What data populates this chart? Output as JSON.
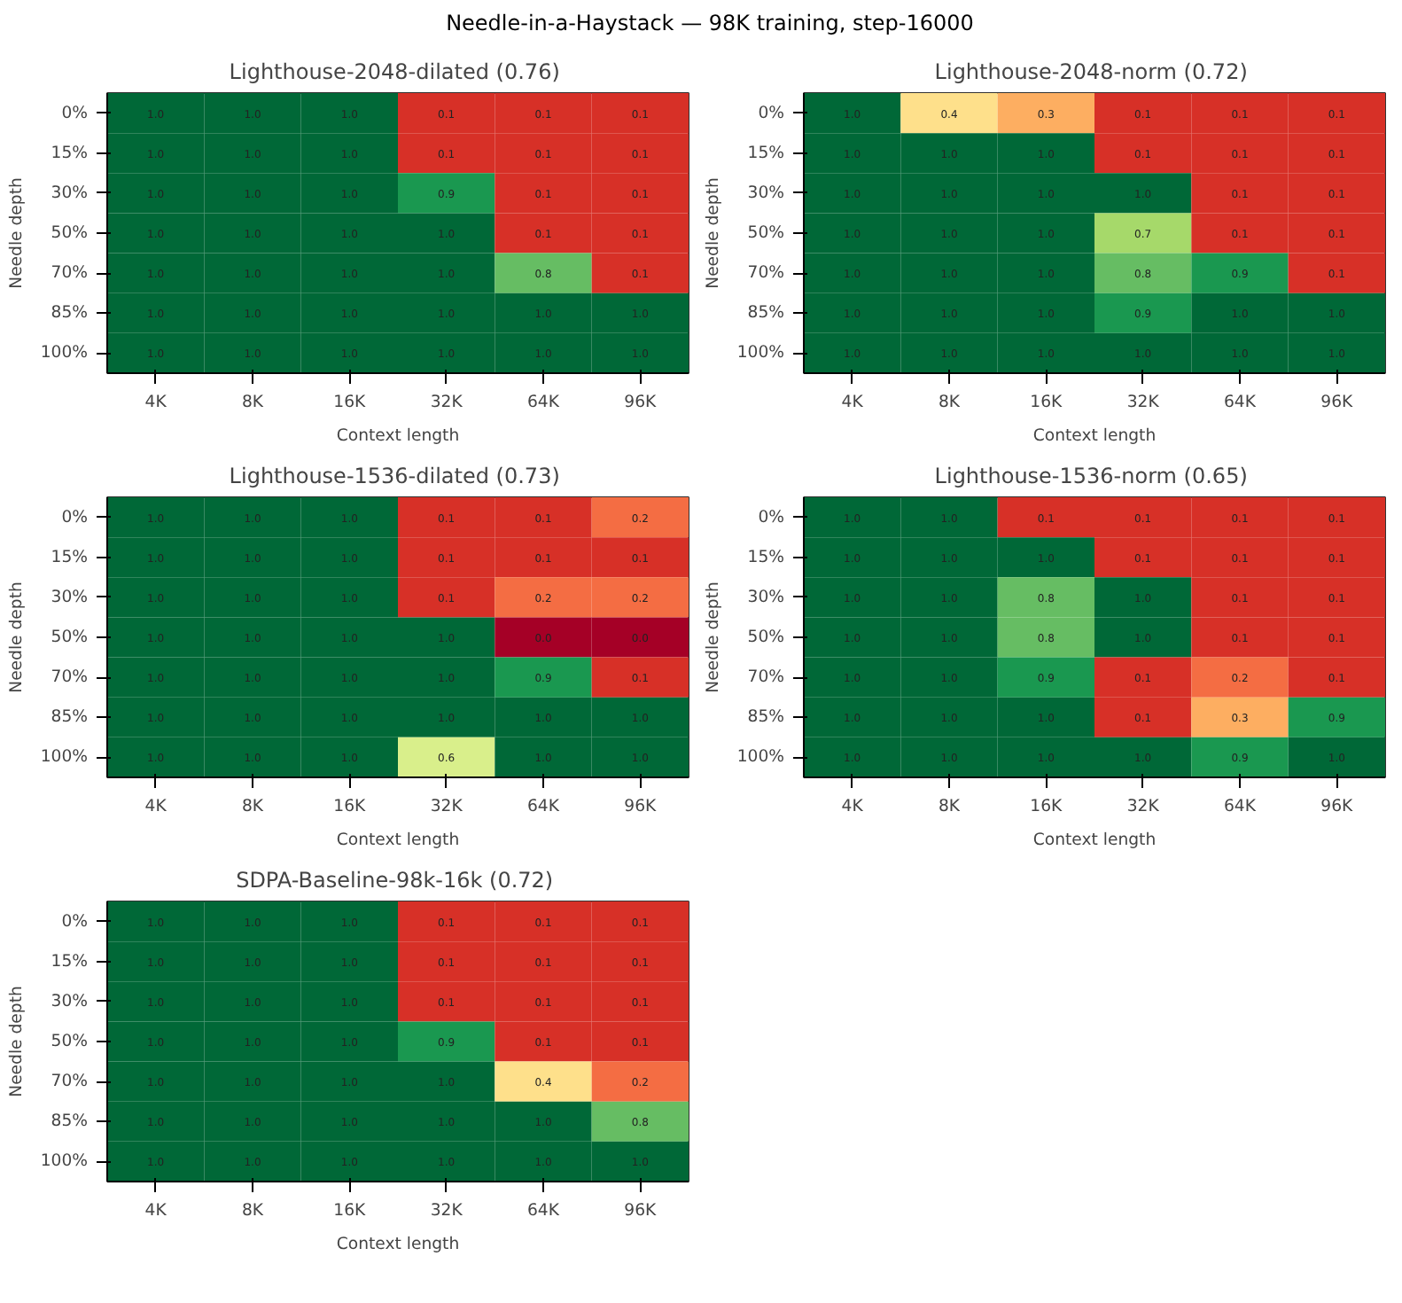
{
  "chart_data": [
    {
      "type": "heatmap",
      "title": "Lighthouse-2048-dilated  (0.76)",
      "annotations": [
        "Needle-in-a-Haystack — 98K training, step-16000"
      ],
      "xlabel": "Context length",
      "ylabel": "Needle depth",
      "data_labels": true,
      "categories": [
        "4K",
        "8K",
        "16K",
        "32K",
        "64K",
        "96K"
      ],
      "y_categories": [
        "0%",
        "15%",
        "30%",
        "50%",
        "70%",
        "85%",
        "100%"
      ],
      "cells": [
        [
          1.0,
          1.0,
          1.0,
          0.1,
          0.1,
          0.1
        ],
        [
          1.0,
          1.0,
          1.0,
          0.1,
          0.1,
          0.1
        ],
        [
          1.0,
          1.0,
          1.0,
          0.9,
          0.1,
          0.1
        ],
        [
          1.0,
          1.0,
          1.0,
          1.0,
          0.1,
          0.1
        ],
        [
          1.0,
          1.0,
          1.0,
          1.0,
          0.8,
          0.1
        ],
        [
          1.0,
          1.0,
          1.0,
          1.0,
          1.0,
          1.0
        ],
        [
          1.0,
          1.0,
          1.0,
          1.0,
          1.0,
          1.0
        ]
      ],
      "cell_labels": [
        [
          "1.0",
          "1.0",
          "1.0",
          "0.1",
          "0.1",
          "0.1"
        ],
        [
          "1.0",
          "1.0",
          "1.0",
          "0.1",
          "0.1",
          "0.1"
        ],
        [
          "1.0",
          "1.0",
          "1.0",
          "0.9",
          "0.1",
          "0.1"
        ],
        [
          "1.0",
          "1.0",
          "1.0",
          "1.0",
          "0.1",
          "0.1"
        ],
        [
          "1.0",
          "1.0",
          "1.0",
          "1.0",
          "0.8",
          "0.1"
        ],
        [
          "1.0",
          "1.0",
          "1.0",
          "1.0",
          "1.0",
          "1.0"
        ],
        [
          "1.0",
          "1.0",
          "1.0",
          "1.0",
          "1.0",
          "1.0"
        ]
      ]
    },
    {
      "type": "heatmap",
      "title": "Lighthouse-2048-norm  (0.72)",
      "xlabel": "Context length",
      "ylabel": "Needle depth",
      "data_labels": true,
      "categories": [
        "4K",
        "8K",
        "16K",
        "32K",
        "64K",
        "96K"
      ],
      "y_categories": [
        "0%",
        "15%",
        "30%",
        "50%",
        "70%",
        "85%",
        "100%"
      ],
      "cells": [
        [
          1.0,
          0.4,
          0.3,
          0.1,
          0.1,
          0.1
        ],
        [
          1.0,
          1.0,
          1.0,
          0.1,
          0.1,
          0.1
        ],
        [
          1.0,
          1.0,
          1.0,
          1.0,
          0.1,
          0.1
        ],
        [
          1.0,
          1.0,
          1.0,
          0.7,
          0.1,
          0.1
        ],
        [
          1.0,
          1.0,
          1.0,
          0.8,
          0.9,
          0.1
        ],
        [
          1.0,
          1.0,
          1.0,
          0.9,
          1.0,
          1.0
        ],
        [
          1.0,
          1.0,
          1.0,
          1.0,
          1.0,
          1.0
        ]
      ],
      "cell_labels": [
        [
          "1.0",
          "0.4",
          "0.3",
          "0.1",
          "0.1",
          "0.1"
        ],
        [
          "1.0",
          "1.0",
          "1.0",
          "0.1",
          "0.1",
          "0.1"
        ],
        [
          "1.0",
          "1.0",
          "1.0",
          "1.0",
          "0.1",
          "0.1"
        ],
        [
          "1.0",
          "1.0",
          "1.0",
          "0.7",
          "0.1",
          "0.1"
        ],
        [
          "1.0",
          "1.0",
          "1.0",
          "0.8",
          "0.9",
          "0.1"
        ],
        [
          "1.0",
          "1.0",
          "1.0",
          "0.9",
          "1.0",
          "1.0"
        ],
        [
          "1.0",
          "1.0",
          "1.0",
          "1.0",
          "1.0",
          "1.0"
        ]
      ]
    },
    {
      "type": "heatmap",
      "title": "Lighthouse-1536-dilated  (0.73)",
      "xlabel": "Context length",
      "ylabel": "Needle depth",
      "data_labels": true,
      "categories": [
        "4K",
        "8K",
        "16K",
        "32K",
        "64K",
        "96K"
      ],
      "y_categories": [
        "0%",
        "15%",
        "30%",
        "50%",
        "70%",
        "85%",
        "100%"
      ],
      "cells": [
        [
          1.0,
          1.0,
          1.0,
          0.1,
          0.1,
          0.2
        ],
        [
          1.0,
          1.0,
          1.0,
          0.1,
          0.1,
          0.1
        ],
        [
          1.0,
          1.0,
          1.0,
          0.1,
          0.2,
          0.2
        ],
        [
          1.0,
          1.0,
          1.0,
          1.0,
          0.0,
          0.0
        ],
        [
          1.0,
          1.0,
          1.0,
          1.0,
          0.9,
          0.1
        ],
        [
          1.0,
          1.0,
          1.0,
          1.0,
          1.0,
          1.0
        ],
        [
          1.0,
          1.0,
          1.0,
          0.6,
          1.0,
          1.0
        ]
      ],
      "cell_labels": [
        [
          "1.0",
          "1.0",
          "1.0",
          "0.1",
          "0.1",
          "0.2"
        ],
        [
          "1.0",
          "1.0",
          "1.0",
          "0.1",
          "0.1",
          "0.1"
        ],
        [
          "1.0",
          "1.0",
          "1.0",
          "0.1",
          "0.2",
          "0.2"
        ],
        [
          "1.0",
          "1.0",
          "1.0",
          "1.0",
          "0.0",
          "0.0"
        ],
        [
          "1.0",
          "1.0",
          "1.0",
          "1.0",
          "0.9",
          "0.1"
        ],
        [
          "1.0",
          "1.0",
          "1.0",
          "1.0",
          "1.0",
          "1.0"
        ],
        [
          "1.0",
          "1.0",
          "1.0",
          "0.6",
          "1.0",
          "1.0"
        ]
      ]
    },
    {
      "type": "heatmap",
      "title": "Lighthouse-1536-norm  (0.65)",
      "xlabel": "Context length",
      "ylabel": "Needle depth",
      "data_labels": true,
      "categories": [
        "4K",
        "8K",
        "16K",
        "32K",
        "64K",
        "96K"
      ],
      "y_categories": [
        "0%",
        "15%",
        "30%",
        "50%",
        "70%",
        "85%",
        "100%"
      ],
      "cells": [
        [
          1.0,
          1.0,
          0.1,
          0.1,
          0.1,
          0.1
        ],
        [
          1.0,
          1.0,
          1.0,
          0.1,
          0.1,
          0.1
        ],
        [
          1.0,
          1.0,
          0.8,
          1.0,
          0.1,
          0.1
        ],
        [
          1.0,
          1.0,
          0.8,
          1.0,
          0.1,
          0.1
        ],
        [
          1.0,
          1.0,
          0.9,
          0.1,
          0.2,
          0.1
        ],
        [
          1.0,
          1.0,
          1.0,
          0.1,
          0.3,
          0.9
        ],
        [
          1.0,
          1.0,
          1.0,
          1.0,
          0.9,
          1.0
        ]
      ],
      "cell_labels": [
        [
          "1.0",
          "1.0",
          "0.1",
          "0.1",
          "0.1",
          "0.1"
        ],
        [
          "1.0",
          "1.0",
          "1.0",
          "0.1",
          "0.1",
          "0.1"
        ],
        [
          "1.0",
          "1.0",
          "0.8",
          "1.0",
          "0.1",
          "0.1"
        ],
        [
          "1.0",
          "1.0",
          "0.8",
          "1.0",
          "0.1",
          "0.1"
        ],
        [
          "1.0",
          "1.0",
          "0.9",
          "0.1",
          "0.2",
          "0.1"
        ],
        [
          "1.0",
          "1.0",
          "1.0",
          "0.1",
          "0.3",
          "0.9"
        ],
        [
          "1.0",
          "1.0",
          "1.0",
          "1.0",
          "0.9",
          "1.0"
        ]
      ]
    },
    {
      "type": "heatmap",
      "title": "SDPA-Baseline-98k-16k  (0.72)",
      "xlabel": "Context length",
      "ylabel": "Needle depth",
      "data_labels": true,
      "categories": [
        "4K",
        "8K",
        "16K",
        "32K",
        "64K",
        "96K"
      ],
      "y_categories": [
        "0%",
        "15%",
        "30%",
        "50%",
        "70%",
        "85%",
        "100%"
      ],
      "cells": [
        [
          1.0,
          1.0,
          1.0,
          0.1,
          0.1,
          0.1
        ],
        [
          1.0,
          1.0,
          1.0,
          0.1,
          0.1,
          0.1
        ],
        [
          1.0,
          1.0,
          1.0,
          0.1,
          0.1,
          0.1
        ],
        [
          1.0,
          1.0,
          1.0,
          0.9,
          0.1,
          0.1
        ],
        [
          1.0,
          1.0,
          1.0,
          1.0,
          0.4,
          0.2
        ],
        [
          1.0,
          1.0,
          1.0,
          1.0,
          1.0,
          0.8
        ],
        [
          1.0,
          1.0,
          1.0,
          1.0,
          1.0,
          1.0
        ]
      ],
      "cell_labels": [
        [
          "1.0",
          "1.0",
          "1.0",
          "0.1",
          "0.1",
          "0.1"
        ],
        [
          "1.0",
          "1.0",
          "1.0",
          "0.1",
          "0.1",
          "0.1"
        ],
        [
          "1.0",
          "1.0",
          "1.0",
          "0.1",
          "0.1",
          "0.1"
        ],
        [
          "1.0",
          "1.0",
          "1.0",
          "0.9",
          "0.1",
          "0.1"
        ],
        [
          "1.0",
          "1.0",
          "1.0",
          "1.0",
          "0.4",
          "0.2"
        ],
        [
          "1.0",
          "1.0",
          "1.0",
          "1.0",
          "1.0",
          "0.8"
        ],
        [
          "1.0",
          "1.0",
          "1.0",
          "1.0",
          "1.0",
          "1.0"
        ]
      ]
    }
  ]
}
